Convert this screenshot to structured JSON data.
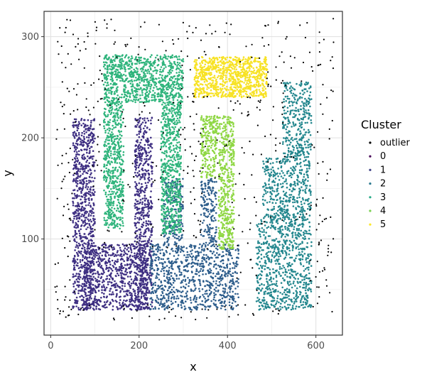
{
  "chart_data": {
    "type": "scatter",
    "title": "",
    "xlabel": "x",
    "ylabel": "y",
    "xlim": [
      -15,
      660
    ],
    "ylim": [
      5,
      325
    ],
    "x_ticks": [
      0,
      200,
      400,
      600
    ],
    "y_ticks": [
      100,
      200,
      300
    ],
    "grid": true,
    "legend": {
      "title": "Cluster",
      "position": "right",
      "entries": [
        {
          "label": "outlier",
          "color": "#000000"
        },
        {
          "label": "0",
          "color": "#440154"
        },
        {
          "label": "1",
          "color": "#414487"
        },
        {
          "label": "2",
          "color": "#2A788E"
        },
        {
          "label": "3",
          "color": "#22A884"
        },
        {
          "label": "4",
          "color": "#7AD151"
        },
        {
          "label": "5",
          "color": "#FDE725"
        }
      ]
    },
    "series": [
      {
        "name": "0",
        "color": "#3E2F82",
        "regions": [
          [
            50,
            100,
            30,
            220
          ],
          [
            75,
            220,
            30,
            95
          ],
          [
            190,
            230,
            30,
            220
          ]
        ]
      },
      {
        "name": "1",
        "color": "#2E5E8C",
        "regions": [
          [
            255,
            300,
            95,
            160
          ],
          [
            340,
            375,
            95,
            160
          ],
          [
            225,
            425,
            30,
            95
          ]
        ]
      },
      {
        "name": "2",
        "color": "#24878E",
        "regions": [
          [
            465,
            590,
            30,
            120
          ],
          [
            480,
            590,
            120,
            180
          ],
          [
            525,
            590,
            180,
            255
          ]
        ]
      },
      {
        "name": "3",
        "color": "#2FB47C",
        "regions": [
          [
            120,
            300,
            235,
            282
          ],
          [
            120,
            165,
            110,
            235
          ],
          [
            250,
            295,
            105,
            235
          ]
        ]
      },
      {
        "name": "4",
        "color": "#8FD744",
        "regions": [
          [
            340,
            415,
            195,
            222
          ],
          [
            380,
            415,
            90,
            195
          ],
          [
            340,
            375,
            160,
            195
          ]
        ]
      },
      {
        "name": "5",
        "color": "#F7E225",
        "regions": [
          [
            325,
            490,
            240,
            280
          ]
        ]
      },
      {
        "name": "outlier",
        "color": "#000000",
        "regions": [
          [
            10,
            640,
            20,
            318
          ]
        ]
      }
    ],
    "point_counts": {
      "0": 2200,
      "1": 1200,
      "2": 1500,
      "3": 2000,
      "4": 700,
      "5": 900,
      "outlier": 500
    }
  }
}
